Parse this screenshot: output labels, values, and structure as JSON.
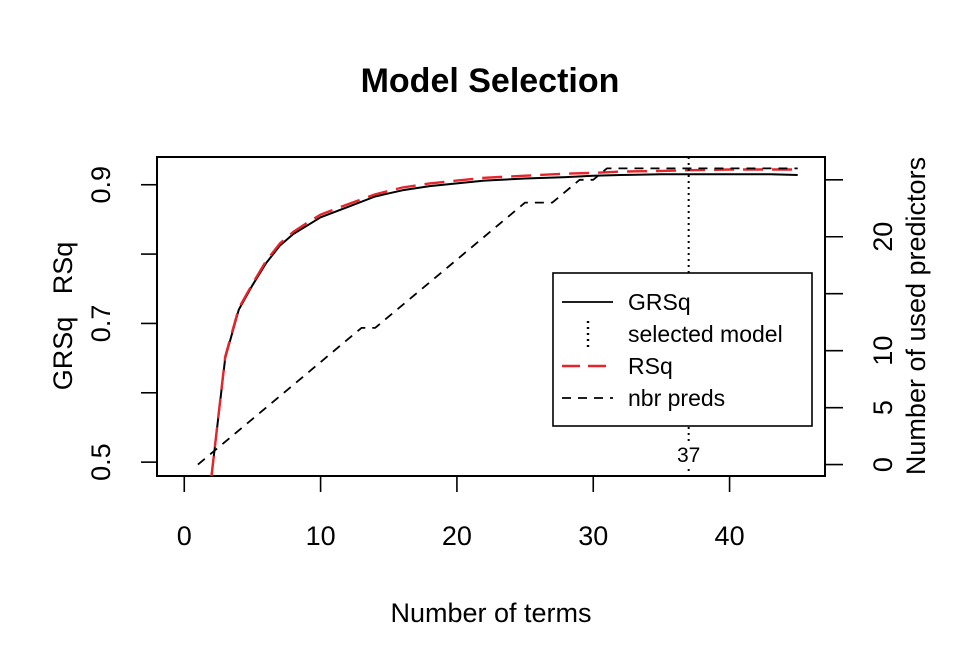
{
  "chart_data": {
    "type": "line",
    "title": "Model Selection",
    "xlabel": "Number of terms",
    "ylabel_left": "GRSq   RSq",
    "ylabel_right": "Number of used predictors",
    "xlim": [
      -2,
      47
    ],
    "ylim_left": [
      0.48,
      0.94
    ],
    "ylim_right": [
      -1,
      27
    ],
    "x_ticks": [
      0,
      10,
      20,
      30,
      40
    ],
    "x_tick_labels": [
      "0",
      "10",
      "20",
      "30",
      "40"
    ],
    "y_left_ticks": [
      0.5,
      0.6,
      0.7,
      0.8,
      0.9
    ],
    "y_left_tick_labels": [
      "0.5",
      "",
      "0.7",
      "",
      "0.9"
    ],
    "y_right_ticks": [
      0,
      5,
      10,
      15,
      20,
      25
    ],
    "y_right_tick_labels": [
      "0",
      "5",
      "10",
      "",
      "20",
      ""
    ],
    "selected_model": {
      "x": 37,
      "label": "37"
    },
    "legend": {
      "position": "right",
      "entries": [
        {
          "label": "GRSq",
          "style": "solid",
          "color": "#000000"
        },
        {
          "label": "selected model",
          "style": "vertical-dotted",
          "color": "#000000"
        },
        {
          "label": "RSq",
          "style": "long-dash",
          "color": "#e8242b"
        },
        {
          "label": "nbr preds",
          "style": "dashed",
          "color": "#000000"
        }
      ]
    },
    "series": [
      {
        "name": "GRSq",
        "axis": "left",
        "color": "#000000",
        "x": [
          2,
          3,
          4,
          5,
          6,
          7,
          8,
          9,
          10,
          12,
          14,
          16,
          18,
          20,
          22,
          25,
          28,
          30,
          32,
          35,
          37,
          40,
          43,
          45
        ],
        "y": [
          0.48,
          0.65,
          0.72,
          0.755,
          0.787,
          0.812,
          0.829,
          0.841,
          0.853,
          0.868,
          0.883,
          0.892,
          0.898,
          0.902,
          0.906,
          0.909,
          0.911,
          0.913,
          0.914,
          0.915,
          0.915,
          0.915,
          0.915,
          0.914
        ]
      },
      {
        "name": "RSq",
        "axis": "left",
        "color": "#e8242b",
        "x": [
          2,
          3,
          4,
          5,
          6,
          7,
          8,
          9,
          10,
          12,
          14,
          16,
          18,
          20,
          22,
          25,
          28,
          30,
          32,
          35,
          37,
          40,
          43,
          45
        ],
        "y": [
          0.48,
          0.652,
          0.722,
          0.757,
          0.79,
          0.815,
          0.832,
          0.845,
          0.857,
          0.872,
          0.886,
          0.896,
          0.902,
          0.906,
          0.91,
          0.913,
          0.916,
          0.917,
          0.919,
          0.92,
          0.921,
          0.922,
          0.922,
          0.922
        ]
      },
      {
        "name": "nbr preds",
        "axis": "right",
        "color": "#000000",
        "x": [
          1,
          13,
          14,
          25,
          27,
          29,
          30,
          31,
          45
        ],
        "y": [
          0,
          12,
          12,
          23,
          23,
          25,
          25,
          26,
          26
        ]
      }
    ]
  }
}
